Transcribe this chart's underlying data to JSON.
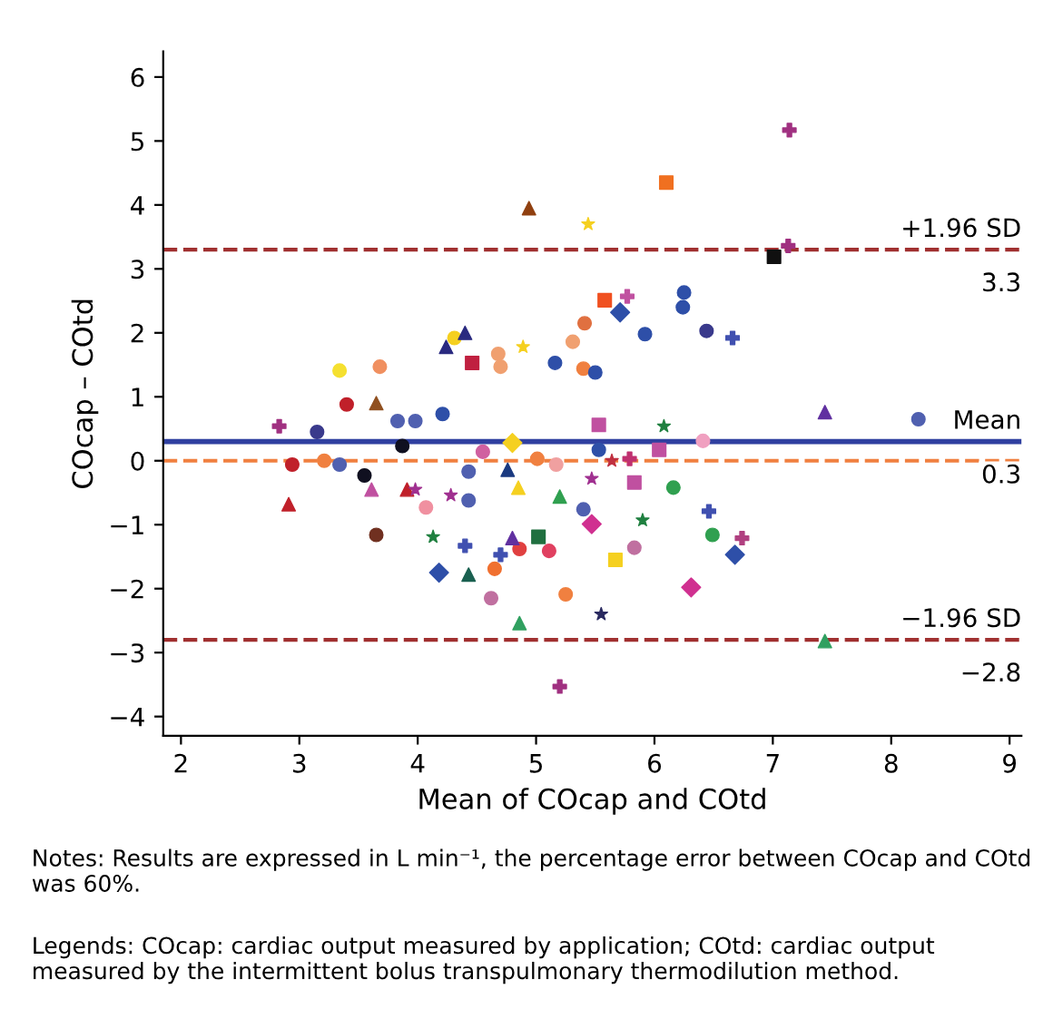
{
  "chart_data": {
    "type": "scatter",
    "xlabel": "Mean of COcap and COtd",
    "ylabel": "COcap – COtd",
    "xlim": [
      1.85,
      9.1
    ],
    "ylim": [
      -4.3,
      6.4
    ],
    "xticks": [
      2,
      3,
      4,
      5,
      6,
      7,
      8,
      9
    ],
    "yticks": [
      -4,
      -3,
      -2,
      -1,
      0,
      1,
      2,
      3,
      4,
      5,
      6
    ],
    "grid": false,
    "legend": false,
    "series": [
      {
        "marker": "circle",
        "x": [
          6.25,
          6.24,
          5.92,
          6.44,
          5.31,
          5.4,
          5.5,
          4.68,
          4.7,
          4.31,
          3.34,
          3.4,
          3.15,
          3.87,
          3.34,
          3.55,
          4.07,
          4.43,
          4.43,
          4.55,
          4.65,
          4.62,
          5.53,
          6.41,
          5.01,
          5.17,
          6.16,
          5.4,
          6.49,
          4.86,
          5.11,
          5.83,
          5.25,
          8.23,
          5.16,
          5.41,
          3.68,
          3.83,
          3.98,
          4.21,
          2.94,
          3.21,
          3.65
        ],
        "values": [
          2.63,
          2.4,
          1.98,
          2.03,
          1.86,
          1.44,
          1.38,
          1.67,
          1.47,
          1.92,
          1.41,
          0.88,
          0.45,
          0.23,
          -0.06,
          -0.23,
          -0.73,
          -0.62,
          -0.17,
          0.14,
          -1.69,
          -2.15,
          0.17,
          0.31,
          0.03,
          -0.06,
          -0.42,
          -0.76,
          -1.16,
          -1.38,
          -1.41,
          -1.36,
          -2.09,
          0.65,
          1.53,
          2.15,
          1.47,
          0.62,
          0.62,
          0.73,
          -0.06,
          0.0,
          -1.16
        ],
        "colors": [
          "#2e4fa8",
          "#2e4fa8",
          "#2e4fa8",
          "#3a3a8c",
          "#f0a070",
          "#f08040",
          "#2e4fa8",
          "#f0a070",
          "#f0a070",
          "#f5d020",
          "#f5e030",
          "#c0202a",
          "#3a3a8c",
          "#101020",
          "#5060b0",
          "#101020",
          "#f090a0",
          "#5060b0",
          "#5060b0",
          "#d060a0",
          "#f07030",
          "#c070a0",
          "#2e4fa8",
          "#f0a0c0",
          "#f08040",
          "#f0a0a0",
          "#30a050",
          "#5060b0",
          "#30a050",
          "#e04040",
          "#e04060",
          "#c070a0",
          "#f08040",
          "#5060b0",
          "#2e4fa8",
          "#e07040",
          "#f09060",
          "#5060b0",
          "#5060b0",
          "#2e4fa8",
          "#c0202a",
          "#f08040",
          "#703020"
        ]
      },
      {
        "marker": "triangle",
        "x": [
          4.24,
          4.4,
          3.61,
          2.91,
          3.91,
          4.43,
          4.76,
          4.86,
          7.44,
          4.94,
          3.65,
          4.85,
          5.2,
          4.8,
          7.44
        ],
        "values": [
          1.78,
          2.0,
          -0.45,
          -0.68,
          -0.45,
          -1.78,
          -0.14,
          -2.54,
          -2.82,
          3.95,
          0.9,
          -0.42,
          -0.56,
          -1.21,
          0.76
        ],
        "colors": [
          "#2a2a80",
          "#2a2a80",
          "#c050a0",
          "#c0202a",
          "#c0202a",
          "#1a6050",
          "#1a3a80",
          "#30a060",
          "#30a060",
          "#904010",
          "#905020",
          "#f5d020",
          "#30a050",
          "#6030a0",
          "#6030a0"
        ]
      },
      {
        "marker": "square",
        "x": [
          6.1,
          7.01,
          5.58,
          4.46,
          5.53,
          6.04,
          5.83,
          5.02,
          5.67
        ],
        "values": [
          4.35,
          3.19,
          2.51,
          1.53,
          0.56,
          0.17,
          -0.34,
          -1.19,
          -1.55
        ],
        "colors": [
          "#f07020",
          "#101010",
          "#f05020",
          "#c02040",
          "#c050a0",
          "#c050a0",
          "#c050a0",
          "#207040",
          "#f5d020"
        ]
      },
      {
        "marker": "diamond",
        "x": [
          5.71,
          4.8,
          5.47,
          6.68,
          4.18,
          6.31
        ],
        "values": [
          2.32,
          0.28,
          -0.99,
          -1.47,
          -1.75,
          -1.98
        ],
        "colors": [
          "#2e4fa8",
          "#f5d020",
          "#d03090",
          "#2e4fa8",
          "#2e4fa8",
          "#d03090"
        ]
      },
      {
        "marker": "star",
        "x": [
          4.89,
          5.44,
          6.08,
          5.64,
          5.47,
          4.13,
          3.98,
          4.28,
          5.55,
          5.9
        ],
        "values": [
          1.78,
          3.7,
          0.54,
          0.0,
          -0.28,
          -1.19,
          -0.45,
          -0.54,
          -2.4,
          -0.93
        ],
        "colors": [
          "#f5d020",
          "#f5d020",
          "#208040",
          "#c03040",
          "#a03090",
          "#208040",
          "#a03090",
          "#a03090",
          "#2a2a60",
          "#208040"
        ]
      },
      {
        "marker": "cross",
        "x": [
          7.14,
          7.13,
          5.77,
          6.66,
          2.83,
          4.4,
          4.7,
          6.46,
          6.74,
          5.2,
          5.79
        ],
        "values": [
          5.17,
          3.36,
          2.57,
          1.92,
          0.54,
          -1.33,
          -1.47,
          -0.79,
          -1.21,
          -3.53,
          0.03
        ],
        "colors": [
          "#a03080",
          "#a03080",
          "#c050a0",
          "#4050b0",
          "#a03080",
          "#4050b0",
          "#4050b0",
          "#4050b0",
          "#b04080",
          "#a03080",
          "#c03070"
        ]
      }
    ],
    "ref_lines": [
      {
        "axis": "y",
        "value": 3.3,
        "label": "+1.96 SD",
        "color": "#a03030",
        "line_style": "dashed"
      },
      {
        "axis": "y",
        "value": 0.3,
        "label": "Mean",
        "color": "#3040a0",
        "line_style": "solid"
      },
      {
        "axis": "y",
        "value": 0,
        "color": "#f08040",
        "line_style": "dashed"
      },
      {
        "axis": "y",
        "value": -2.8,
        "label": "−1.96 SD",
        "color": "#a03030",
        "line_style": "dashed"
      }
    ],
    "annotations": [
      {
        "text": "3.3",
        "y": 3.3
      },
      {
        "text": "0.3",
        "y": 0.3
      },
      {
        "text": "−2.8",
        "y": -2.8
      },
      "Notes: Results are expressed in L min⁻¹, the percentage error between COcap and COtd was 60%.",
      "Legends: COcap: cardiac output measured by application; COtd: cardiac output measured by the intermittent bolus transpulmonary thermodilution method."
    ]
  }
}
